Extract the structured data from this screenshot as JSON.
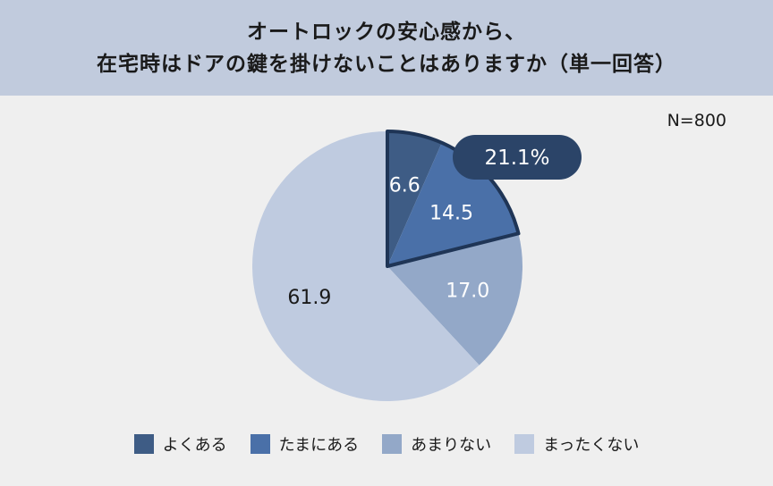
{
  "header": {
    "title_line1": "オートロックの安心感から、",
    "title_line2": "在宅時はドアの鍵を掛けないことはありますか（単一回答）"
  },
  "sample_size": "N=800",
  "callout": {
    "label": "21.1%",
    "color": "#2b4468"
  },
  "chart_data": {
    "type": "pie",
    "title": "オートロックの安心感から、在宅時はドアの鍵を掛けないことはありますか（単一回答）",
    "categories": [
      "よくある",
      "たまにある",
      "あまりない",
      "まったくない"
    ],
    "values": [
      6.6,
      14.5,
      17.0,
      61.9
    ],
    "labels": [
      "6.6",
      "14.5",
      "17.0",
      "61.9"
    ],
    "colors": [
      "#3e5c85",
      "#4a70a8",
      "#93a8c8",
      "#bfcbe0"
    ],
    "label_colors": [
      "#ffffff",
      "#ffffff",
      "#ffffff",
      "#1a1a1a"
    ],
    "start": "12 o'clock",
    "direction": "clockwise",
    "highlight_group": [
      0,
      1
    ],
    "legend_position": "bottom"
  }
}
